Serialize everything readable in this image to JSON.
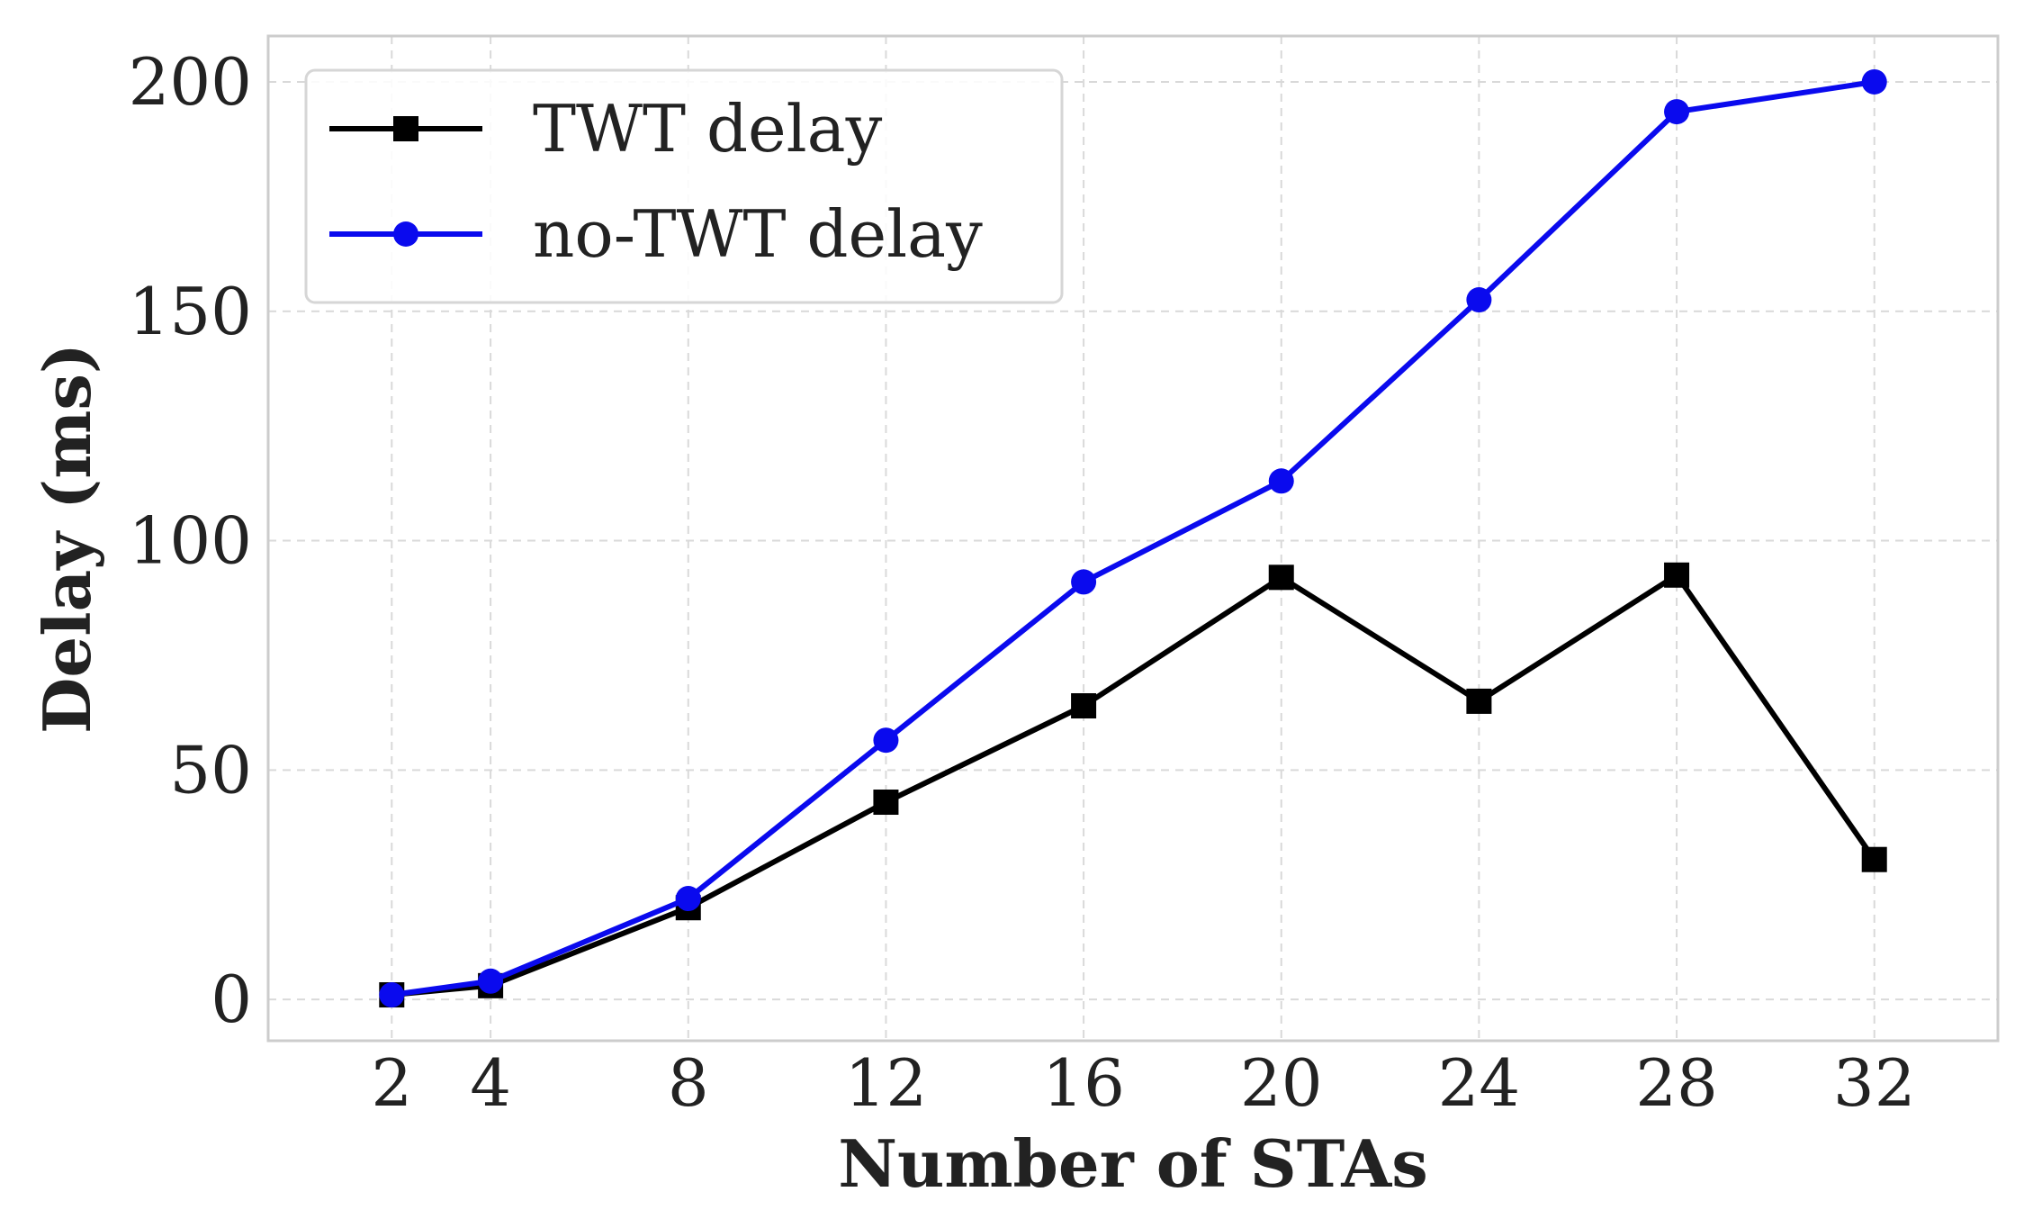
{
  "chart_data": {
    "type": "line",
    "title": "",
    "xlabel": "Number of STAs",
    "ylabel": "Delay (ms)",
    "x": [
      2,
      4,
      8,
      12,
      16,
      20,
      24,
      28,
      32
    ],
    "xlim": [
      -0.5,
      34.5
    ],
    "ylim": [
      -9,
      210
    ],
    "xticks": [
      "2",
      "4",
      "8",
      "12",
      "16",
      "20",
      "24",
      "28",
      "32"
    ],
    "xtick_values": [
      2,
      4,
      8,
      12,
      16,
      20,
      24,
      28,
      32
    ],
    "yticks": [
      "0",
      "50",
      "100",
      "150",
      "200"
    ],
    "ytick_values": [
      0,
      50,
      100,
      150,
      200
    ],
    "grid": true,
    "legend_position": "top-left",
    "series": [
      {
        "name": "TWT delay",
        "color": "#000000",
        "marker": "square",
        "values": [
          1,
          3,
          20,
          43,
          64,
          92,
          65,
          92.5,
          30.5
        ]
      },
      {
        "name": "no-TWT delay",
        "color": "#0a0aee",
        "marker": "circle",
        "values": [
          1,
          4,
          22,
          56.5,
          91,
          113,
          152.5,
          193.5,
          200
        ]
      }
    ]
  }
}
